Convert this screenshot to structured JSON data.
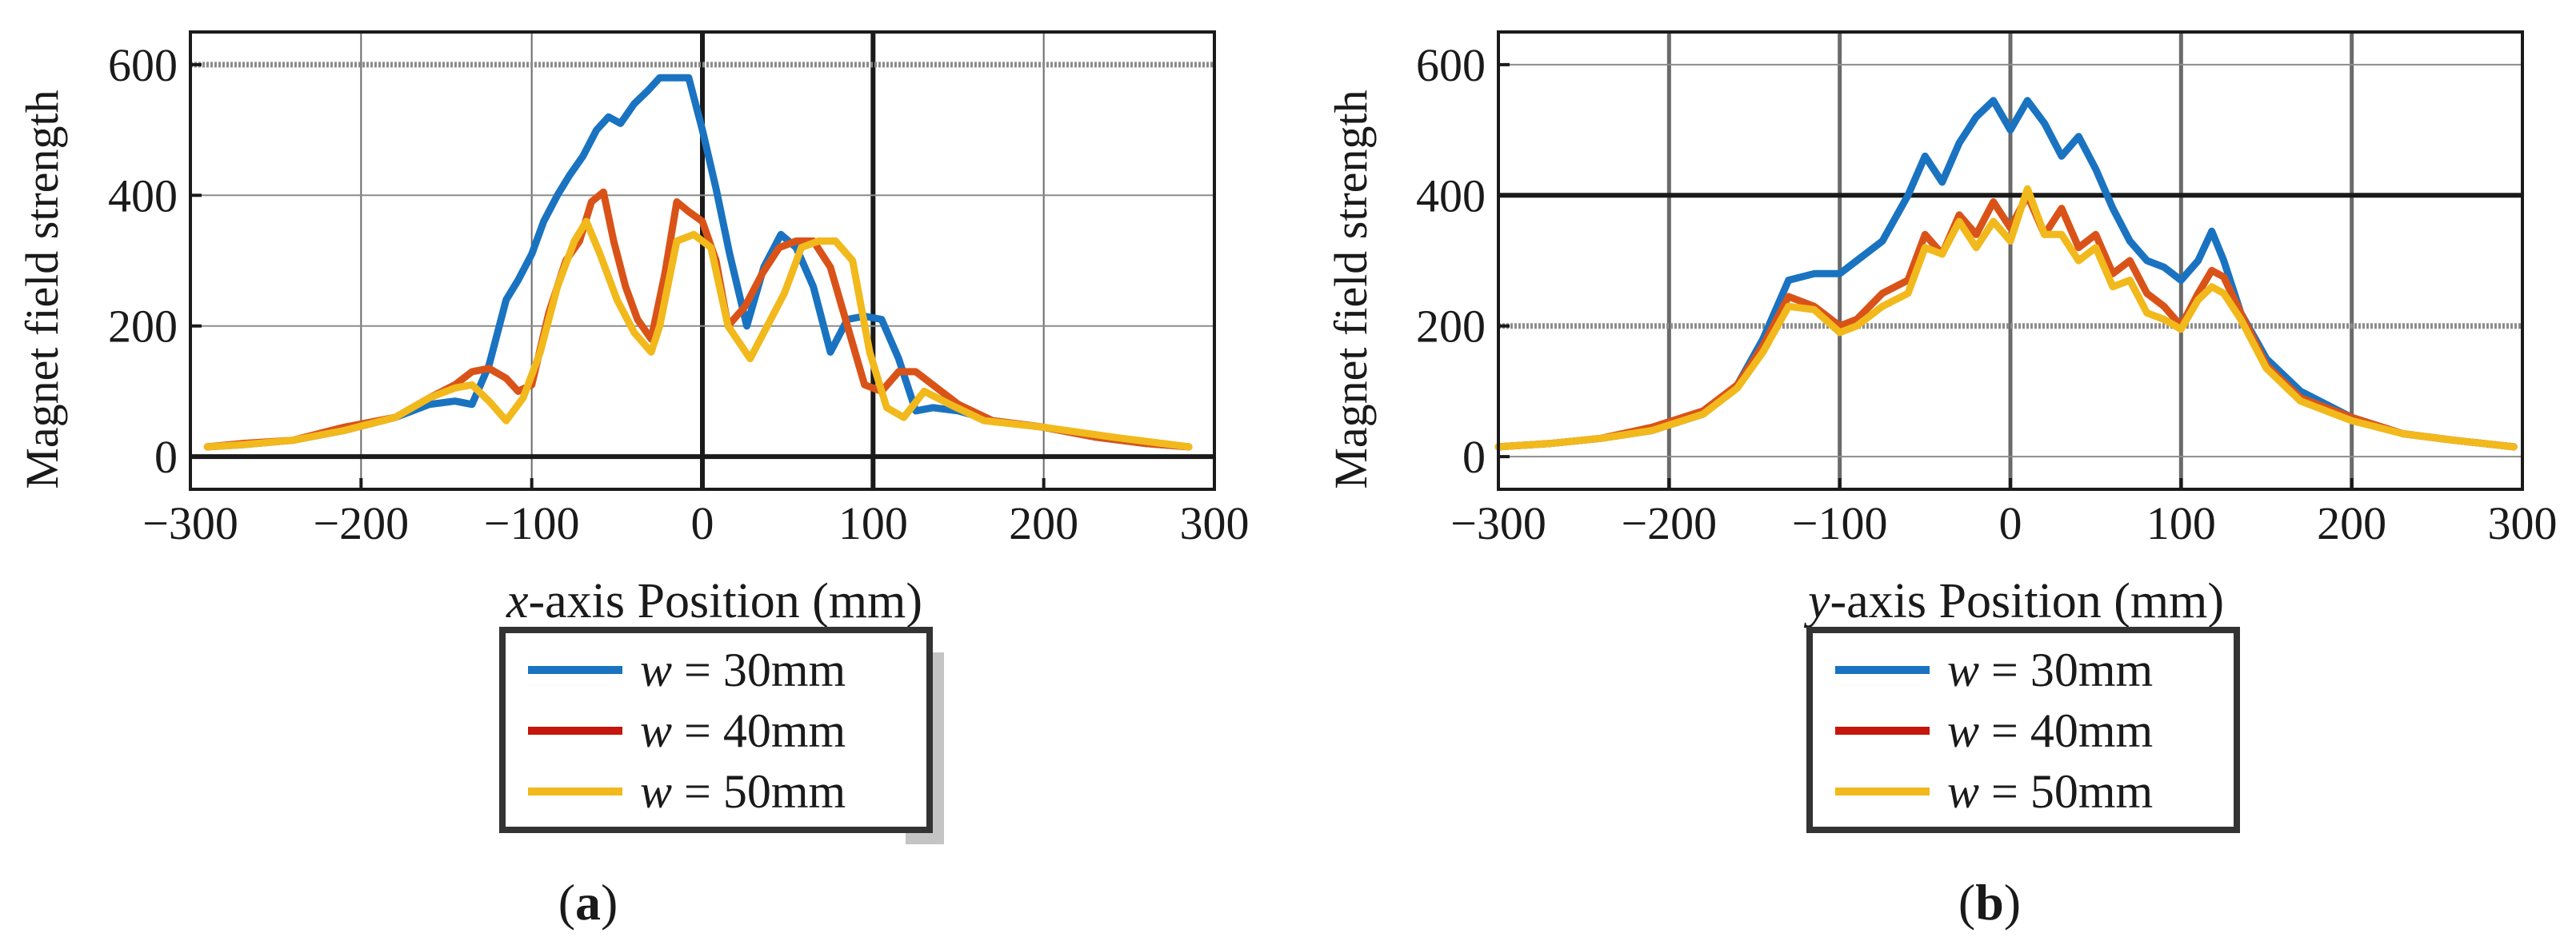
{
  "colors": {
    "series": [
      "#1a73c1",
      "#d95319",
      "#f2b91c"
    ],
    "legend_swatches": [
      "#1a73c1",
      "#c4160c",
      "#f2b91c"
    ],
    "axis": "#1a1a1a",
    "grid": "#8c8c8c"
  },
  "chart_data": [
    {
      "type": "line",
      "panel_label": "(a)",
      "panel_letter": "a",
      "title": "",
      "ylabel": "Magnet field strength",
      "xlabel_var": "x",
      "xlabel_rest": "-axis Position (mm)",
      "xlim": [
        -300,
        300
      ],
      "ylim": [
        -50,
        650
      ],
      "xticks": [
        -300,
        -200,
        -100,
        0,
        100,
        200,
        300
      ],
      "xtick_labels": [
        "−300",
        "−200",
        "−100",
        "0",
        "100",
        "200",
        "300"
      ],
      "yticks": [
        0,
        200,
        400,
        600
      ],
      "ytick_labels": [
        "0",
        "200",
        "400",
        "600"
      ],
      "grid": true,
      "legend": {
        "placement": "below",
        "items": [
          {
            "var": "w",
            "text": " = 30mm"
          },
          {
            "var": "w",
            "text": " = 40mm"
          },
          {
            "var": "w",
            "text": " = 50mm"
          }
        ]
      },
      "series": [
        {
          "name": "w = 30mm",
          "x": [
            -290,
            -270,
            -240,
            -210,
            -180,
            -160,
            -145,
            -135,
            -125,
            -115,
            -108,
            -100,
            -93,
            -85,
            -78,
            -70,
            -62,
            -55,
            -48,
            -40,
            -32,
            -25,
            -18,
            -8,
            0,
            8,
            16,
            26,
            36,
            46,
            55,
            65,
            75,
            85,
            95,
            105,
            115,
            125,
            135,
            150,
            170,
            200,
            230,
            260,
            285
          ],
          "values": [
            15,
            18,
            25,
            40,
            60,
            80,
            85,
            80,
            140,
            240,
            270,
            310,
            360,
            400,
            430,
            460,
            500,
            520,
            510,
            540,
            560,
            580,
            580,
            580,
            500,
            410,
            310,
            200,
            290,
            340,
            320,
            260,
            160,
            210,
            215,
            210,
            150,
            70,
            75,
            70,
            55,
            45,
            30,
            20,
            15
          ]
        },
        {
          "name": "w = 40mm",
          "x": [
            -290,
            -270,
            -240,
            -210,
            -180,
            -160,
            -145,
            -135,
            -125,
            -115,
            -108,
            -100,
            -90,
            -80,
            -72,
            -65,
            -58,
            -52,
            -45,
            -38,
            -30,
            -22,
            -15,
            -8,
            0,
            8,
            15,
            25,
            35,
            45,
            55,
            65,
            75,
            85,
            95,
            105,
            115,
            125,
            135,
            150,
            170,
            200,
            230,
            260,
            285
          ],
          "values": [
            15,
            20,
            25,
            45,
            60,
            90,
            110,
            130,
            135,
            120,
            100,
            110,
            220,
            300,
            330,
            390,
            405,
            330,
            260,
            210,
            180,
            280,
            390,
            375,
            360,
            300,
            200,
            230,
            280,
            320,
            330,
            330,
            290,
            200,
            110,
            100,
            130,
            130,
            110,
            80,
            55,
            45,
            30,
            20,
            15
          ]
        },
        {
          "name": "w = 50mm",
          "x": [
            -290,
            -270,
            -240,
            -210,
            -180,
            -160,
            -145,
            -135,
            -125,
            -115,
            -105,
            -95,
            -85,
            -75,
            -68,
            -60,
            -50,
            -40,
            -30,
            -25,
            -15,
            -5,
            5,
            15,
            28,
            38,
            48,
            58,
            68,
            78,
            88,
            98,
            108,
            118,
            130,
            145,
            165,
            200,
            240,
            285
          ],
          "values": [
            15,
            18,
            25,
            40,
            60,
            90,
            105,
            110,
            85,
            55,
            90,
            160,
            260,
            330,
            360,
            310,
            240,
            190,
            160,
            200,
            330,
            340,
            320,
            200,
            150,
            200,
            250,
            320,
            330,
            330,
            300,
            160,
            75,
            60,
            100,
            80,
            55,
            45,
            30,
            15
          ]
        }
      ]
    },
    {
      "type": "line",
      "panel_label": "(b)",
      "panel_letter": "b",
      "title": "",
      "ylabel": "Magnet field strength",
      "xlabel_var": "y",
      "xlabel_rest": "-axis Position (mm)",
      "xlim": [
        -300,
        300
      ],
      "ylim": [
        -50,
        650
      ],
      "xticks": [
        -300,
        -200,
        -100,
        0,
        100,
        200,
        300
      ],
      "xtick_labels": [
        "−300",
        "−200",
        "−100",
        "0",
        "100",
        "200",
        "300"
      ],
      "yticks": [
        0,
        200,
        400,
        600
      ],
      "ytick_labels": [
        "0",
        "200",
        "400",
        "600"
      ],
      "grid": true,
      "legend": {
        "placement": "below",
        "items": [
          {
            "var": "w",
            "text": " = 30mm"
          },
          {
            "var": "w",
            "text": " = 40mm"
          },
          {
            "var": "w",
            "text": " = 50mm"
          }
        ]
      },
      "series": [
        {
          "name": "w = 30mm",
          "x": [
            -300,
            -270,
            -240,
            -210,
            -180,
            -160,
            -145,
            -130,
            -115,
            -100,
            -90,
            -75,
            -60,
            -50,
            -40,
            -30,
            -20,
            -10,
            0,
            10,
            20,
            30,
            40,
            50,
            60,
            70,
            80,
            90,
            100,
            110,
            118,
            125,
            135,
            150,
            170,
            200,
            230,
            260,
            295
          ],
          "values": [
            15,
            20,
            28,
            40,
            65,
            110,
            180,
            270,
            280,
            280,
            300,
            330,
            400,
            460,
            420,
            480,
            520,
            545,
            500,
            545,
            510,
            460,
            490,
            440,
            380,
            330,
            300,
            290,
            270,
            300,
            345,
            300,
            220,
            150,
            100,
            60,
            35,
            25,
            15
          ]
        },
        {
          "name": "w = 40mm",
          "x": [
            -300,
            -270,
            -240,
            -210,
            -180,
            -160,
            -145,
            -130,
            -115,
            -100,
            -90,
            -75,
            -60,
            -50,
            -40,
            -30,
            -20,
            -10,
            0,
            10,
            20,
            30,
            40,
            50,
            60,
            70,
            80,
            90,
            100,
            110,
            118,
            125,
            135,
            150,
            170,
            200,
            230,
            260,
            295
          ],
          "values": [
            15,
            20,
            28,
            45,
            70,
            110,
            170,
            245,
            230,
            200,
            210,
            250,
            270,
            340,
            310,
            370,
            340,
            390,
            350,
            400,
            340,
            380,
            320,
            340,
            280,
            300,
            250,
            230,
            200,
            250,
            285,
            275,
            220,
            140,
            90,
            60,
            35,
            25,
            15
          ]
        },
        {
          "name": "w = 50mm",
          "x": [
            -300,
            -270,
            -240,
            -210,
            -180,
            -160,
            -145,
            -130,
            -115,
            -100,
            -90,
            -75,
            -60,
            -50,
            -40,
            -30,
            -20,
            -10,
            0,
            10,
            20,
            30,
            40,
            50,
            60,
            70,
            80,
            90,
            100,
            110,
            118,
            125,
            135,
            150,
            170,
            200,
            230,
            260,
            295
          ],
          "values": [
            15,
            20,
            28,
            40,
            65,
            105,
            160,
            230,
            225,
            190,
            200,
            230,
            250,
            320,
            310,
            360,
            320,
            360,
            330,
            410,
            340,
            340,
            300,
            320,
            260,
            270,
            220,
            210,
            195,
            240,
            260,
            250,
            210,
            135,
            85,
            55,
            35,
            25,
            15
          ]
        }
      ]
    }
  ]
}
